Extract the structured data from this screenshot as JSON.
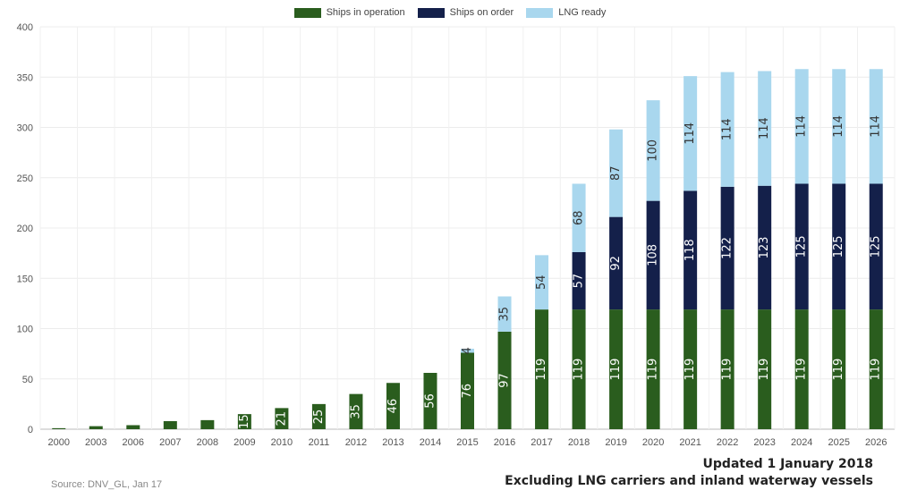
{
  "chart_data": {
    "type": "bar",
    "stacked": true,
    "categories": [
      "2000",
      "2003",
      "2006",
      "2007",
      "2008",
      "2009",
      "2010",
      "2011",
      "2012",
      "2013",
      "2014",
      "2015",
      "2016",
      "2017",
      "2018",
      "2019",
      "2020",
      "2021",
      "2022",
      "2023",
      "2024",
      "2025",
      "2026"
    ],
    "series": [
      {
        "name": "Ships in operation",
        "color": "#2a5d1e",
        "values": [
          1,
          3,
          4,
          8,
          9,
          15,
          21,
          25,
          35,
          46,
          56,
          76,
          97,
          119,
          119,
          119,
          119,
          119,
          119,
          119,
          119,
          119,
          119
        ],
        "labels": [
          "",
          "",
          "",
          "",
          "",
          "15",
          "21",
          "25",
          "35",
          "46",
          "56",
          "76",
          "97",
          "119",
          "119",
          "119",
          "119",
          "119",
          "119",
          "119",
          "119",
          "119",
          "119"
        ]
      },
      {
        "name": "Ships on order",
        "color": "#14204a",
        "values": [
          0,
          0,
          0,
          0,
          0,
          0,
          0,
          0,
          0,
          0,
          0,
          0,
          0,
          0,
          57,
          92,
          108,
          118,
          122,
          123,
          125,
          125,
          125
        ],
        "labels": [
          "",
          "",
          "",
          "",
          "",
          "",
          "",
          "",
          "",
          "",
          "",
          "",
          "",
          "",
          "57",
          "92",
          "108",
          "118",
          "122",
          "123",
          "125",
          "125",
          "125"
        ]
      },
      {
        "name": "LNG ready",
        "color": "#a9d7ee",
        "values": [
          0,
          0,
          0,
          0,
          0,
          0,
          0,
          0,
          0,
          0,
          0,
          4,
          35,
          54,
          68,
          87,
          100,
          114,
          114,
          114,
          114,
          114,
          114
        ],
        "labels": [
          "",
          "",
          "",
          "",
          "",
          "",
          "",
          "",
          "",
          "",
          "",
          "4",
          "35",
          "54",
          "68",
          "87",
          "100",
          "114",
          "114",
          "114",
          "114",
          "114",
          "114"
        ]
      }
    ],
    "ylim": [
      0,
      400
    ],
    "yticks": [
      0,
      50,
      100,
      150,
      200,
      250,
      300,
      350,
      400
    ],
    "grid": true,
    "legend_position": "top-center"
  },
  "source_text": "Source: DNV_GL, Jan 17",
  "note_line1": "Updated 1 January 2018",
  "note_line2": "Excluding LNG carriers and inland waterway vessels"
}
